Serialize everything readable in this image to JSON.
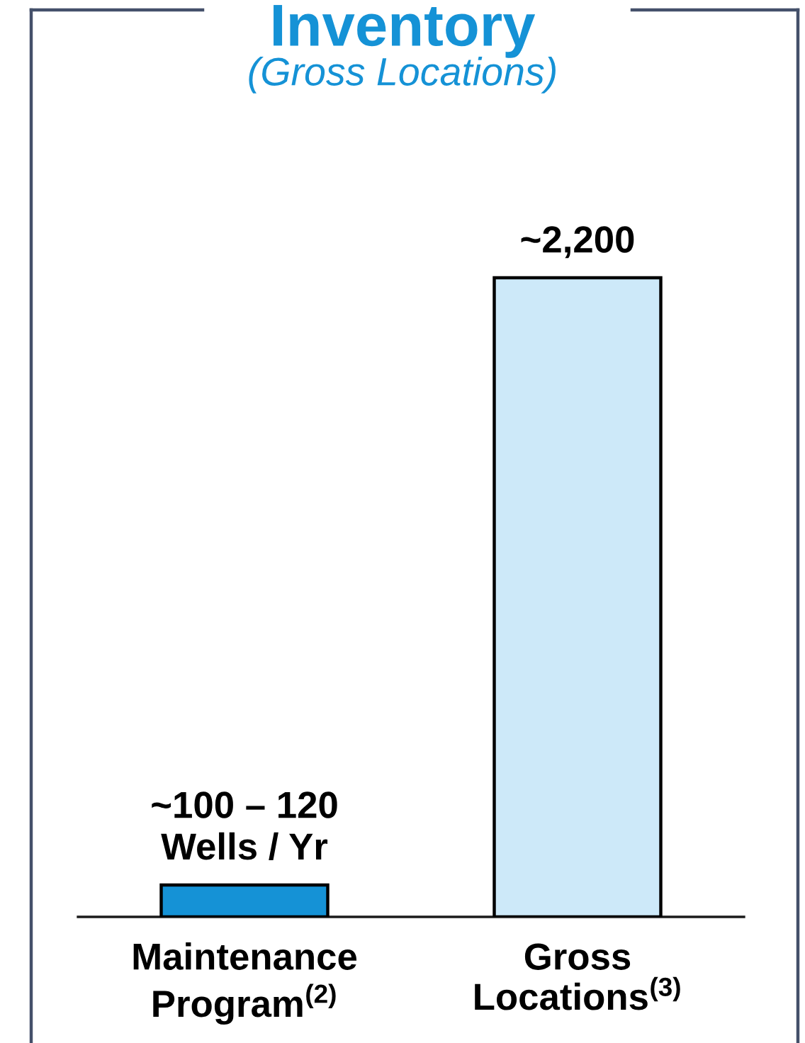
{
  "chart_data": {
    "type": "bar",
    "title": "Inventory",
    "subtitle": "(Gross Locations)",
    "categories": [
      "Maintenance\nProgram$^{(2)}$",
      "Gross\nLocations$^{(3)}$"
    ],
    "values": [
      110,
      2200
    ],
    "colors": [
      "#1592d6",
      "#cde9f9"
    ],
    "value_labels": [
      "~100 – 120\nWells / Yr",
      "~2,200"
    ]
  }
}
